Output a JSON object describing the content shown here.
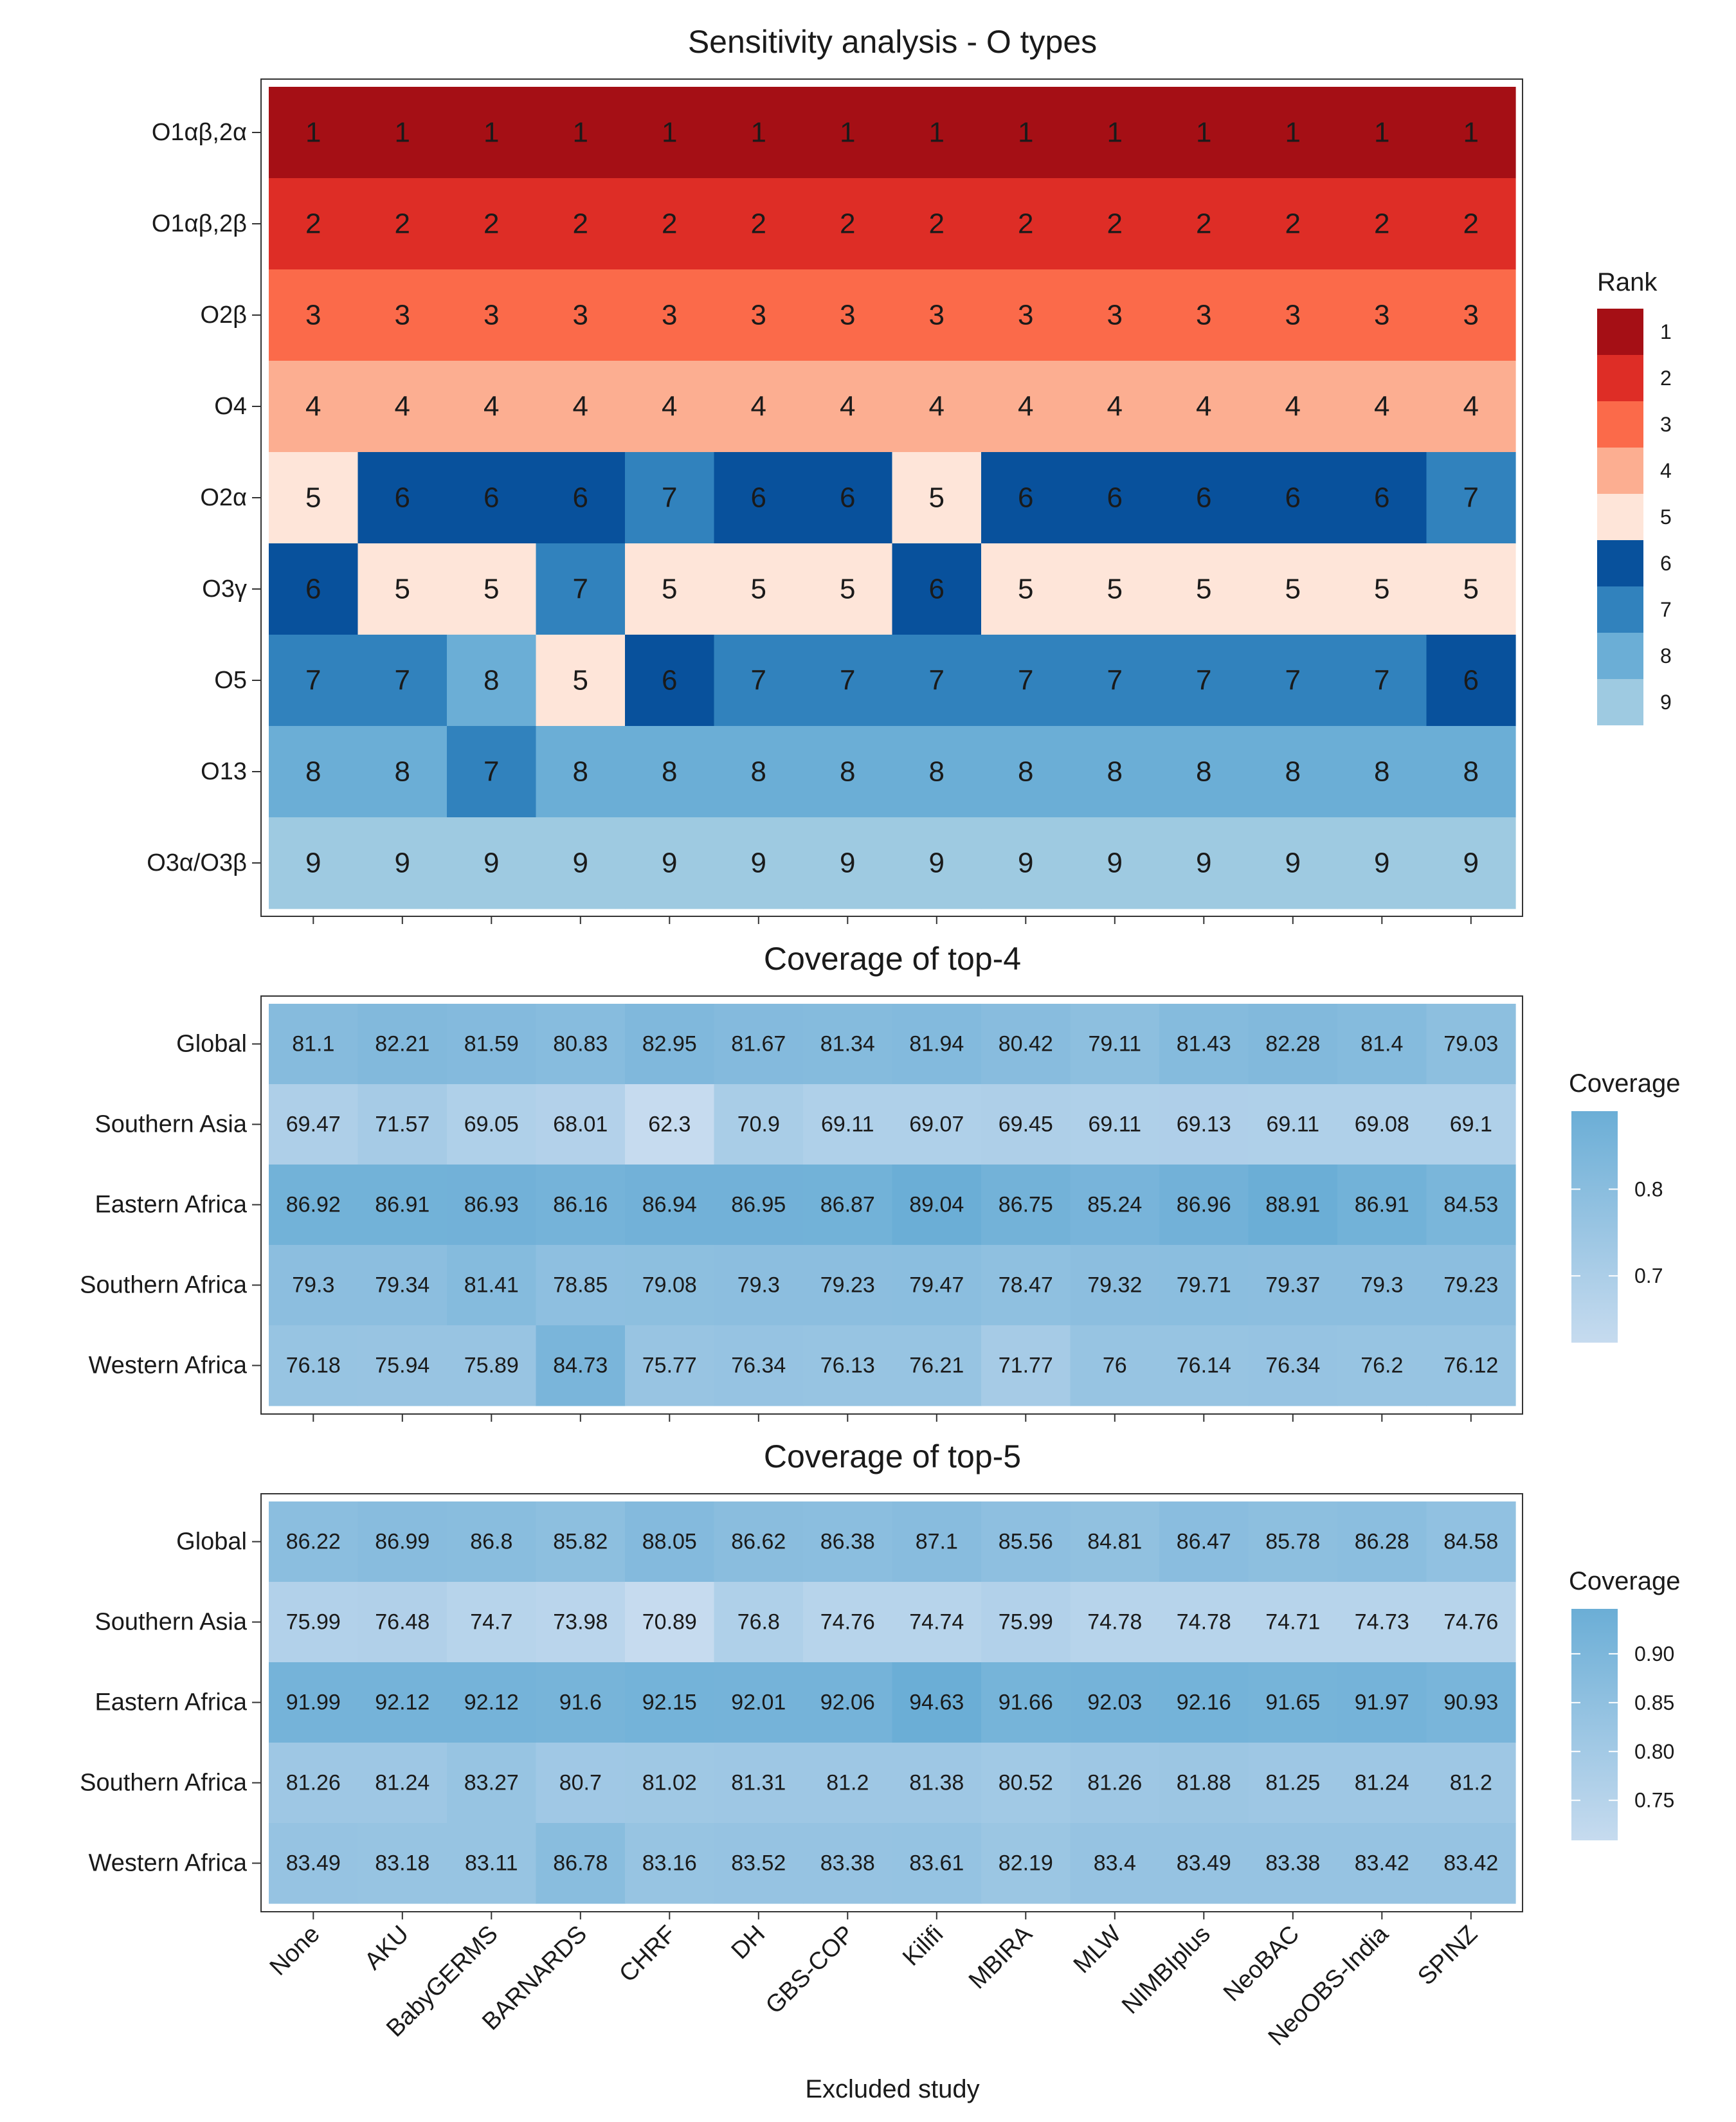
{
  "x_axis": {
    "title": "Excluded study",
    "categories": [
      "None",
      "AKU",
      "BabyGERMS",
      "BARNARDS",
      "CHRF",
      "DH",
      "GBS-COP",
      "Kilifi",
      "MBIRA",
      "MLW",
      "NIMBIplus",
      "NeoBAC",
      "NeoOBS-India",
      "SPINZ"
    ]
  },
  "chart_data": [
    {
      "type": "heatmap",
      "title": "Sensitivity analysis - O types",
      "rows": [
        "O1αβ,2α",
        "O1αβ,2β",
        "O2β",
        "O4",
        "O2α",
        "O3γ",
        "O5",
        "O13",
        "O3α/O3β"
      ],
      "columns": [
        "None",
        "AKU",
        "BabyGERMS",
        "BARNARDS",
        "CHRF",
        "DH",
        "GBS-COP",
        "Kilifi",
        "MBIRA",
        "MLW",
        "NIMBIplus",
        "NeoBAC",
        "NeoOBS-India",
        "SPINZ"
      ],
      "values": [
        [
          1,
          1,
          1,
          1,
          1,
          1,
          1,
          1,
          1,
          1,
          1,
          1,
          1,
          1
        ],
        [
          2,
          2,
          2,
          2,
          2,
          2,
          2,
          2,
          2,
          2,
          2,
          2,
          2,
          2
        ],
        [
          3,
          3,
          3,
          3,
          3,
          3,
          3,
          3,
          3,
          3,
          3,
          3,
          3,
          3
        ],
        [
          4,
          4,
          4,
          4,
          4,
          4,
          4,
          4,
          4,
          4,
          4,
          4,
          4,
          4
        ],
        [
          5,
          6,
          6,
          6,
          7,
          6,
          6,
          5,
          6,
          6,
          6,
          6,
          6,
          7
        ],
        [
          6,
          5,
          5,
          7,
          5,
          5,
          5,
          6,
          5,
          5,
          5,
          5,
          5,
          5
        ],
        [
          7,
          7,
          8,
          5,
          6,
          7,
          7,
          7,
          7,
          7,
          7,
          7,
          7,
          6
        ],
        [
          8,
          8,
          7,
          8,
          8,
          8,
          8,
          8,
          8,
          8,
          8,
          8,
          8,
          8
        ],
        [
          9,
          9,
          9,
          9,
          9,
          9,
          9,
          9,
          9,
          9,
          9,
          9,
          9,
          9
        ]
      ],
      "legend": {
        "title": "Rank",
        "position": "right",
        "levels": [
          "1",
          "2",
          "3",
          "4",
          "5",
          "6",
          "7",
          "8",
          "9"
        ],
        "colors": [
          "#a50f15",
          "#de2d26",
          "#fb6a4a",
          "#fcae91",
          "#fee5d9",
          "#08519c",
          "#3182bd",
          "#6baed6",
          "#9ecae1"
        ]
      }
    },
    {
      "type": "heatmap",
      "title": "Coverage of top-4",
      "rows": [
        "Global",
        "Southern Asia",
        "Eastern Africa",
        "Southern Africa",
        "Western Africa"
      ],
      "columns": [
        "None",
        "AKU",
        "BabyGERMS",
        "BARNARDS",
        "CHRF",
        "DH",
        "GBS-COP",
        "Kilifi",
        "MBIRA",
        "MLW",
        "NIMBIplus",
        "NeoBAC",
        "NeoOBS-India",
        "SPINZ"
      ],
      "values": [
        [
          "81.1",
          "82.21",
          "81.59",
          "80.83",
          "82.95",
          "81.67",
          "81.34",
          "81.94",
          "80.42",
          "79.11",
          "81.43",
          "82.28",
          "81.4",
          "79.03"
        ],
        [
          "69.47",
          "71.57",
          "69.05",
          "68.01",
          "62.3",
          "70.9",
          "69.11",
          "69.07",
          "69.45",
          "69.11",
          "69.13",
          "69.11",
          "69.08",
          "69.1"
        ],
        [
          "86.92",
          "86.91",
          "86.93",
          "86.16",
          "86.94",
          "86.95",
          "86.87",
          "89.04",
          "86.75",
          "85.24",
          "86.96",
          "88.91",
          "86.91",
          "84.53"
        ],
        [
          "79.3",
          "79.34",
          "81.41",
          "78.85",
          "79.08",
          "79.3",
          "79.23",
          "79.47",
          "78.47",
          "79.32",
          "79.71",
          "79.37",
          "79.3",
          "79.23"
        ],
        [
          "76.18",
          "75.94",
          "75.89",
          "84.73",
          "75.77",
          "76.34",
          "76.13",
          "76.21",
          "71.77",
          "76",
          "76.14",
          "76.34",
          "76.2",
          "76.12"
        ]
      ],
      "legend": {
        "title": "Coverage",
        "position": "right",
        "range": [
          0.623,
          0.89
        ],
        "ticks": [
          "0.7",
          "0.8"
        ],
        "tick_values": [
          0.7,
          0.8
        ],
        "color_low": "#c6dbef",
        "color_high": "#6baed6"
      }
    },
    {
      "type": "heatmap",
      "title": "Coverage of top-5",
      "rows": [
        "Global",
        "Southern Asia",
        "Eastern Africa",
        "Southern Africa",
        "Western Africa"
      ],
      "columns": [
        "None",
        "AKU",
        "BabyGERMS",
        "BARNARDS",
        "CHRF",
        "DH",
        "GBS-COP",
        "Kilifi",
        "MBIRA",
        "MLW",
        "NIMBIplus",
        "NeoBAC",
        "NeoOBS-India",
        "SPINZ"
      ],
      "values": [
        [
          "86.22",
          "86.99",
          "86.8",
          "85.82",
          "88.05",
          "86.62",
          "86.38",
          "87.1",
          "85.56",
          "84.81",
          "86.47",
          "85.78",
          "86.28",
          "84.58"
        ],
        [
          "75.99",
          "76.48",
          "74.7",
          "73.98",
          "70.89",
          "76.8",
          "74.76",
          "74.74",
          "75.99",
          "74.78",
          "74.78",
          "74.71",
          "74.73",
          "74.76"
        ],
        [
          "91.99",
          "92.12",
          "92.12",
          "91.6",
          "92.15",
          "92.01",
          "92.06",
          "94.63",
          "91.66",
          "92.03",
          "92.16",
          "91.65",
          "91.97",
          "90.93"
        ],
        [
          "81.26",
          "81.24",
          "83.27",
          "80.7",
          "81.02",
          "81.31",
          "81.2",
          "81.38",
          "80.52",
          "81.26",
          "81.88",
          "81.25",
          "81.24",
          "81.2"
        ],
        [
          "83.49",
          "83.18",
          "83.11",
          "86.78",
          "83.16",
          "83.52",
          "83.38",
          "83.61",
          "82.19",
          "83.4",
          "83.49",
          "83.38",
          "83.42",
          "83.42"
        ]
      ],
      "legend": {
        "title": "Coverage",
        "position": "right",
        "range": [
          0.709,
          0.946
        ],
        "ticks": [
          "0.75",
          "0.80",
          "0.85",
          "0.90"
        ],
        "tick_values": [
          0.75,
          0.8,
          0.85,
          0.9
        ],
        "color_low": "#c6dbef",
        "color_high": "#6baed6"
      }
    }
  ]
}
